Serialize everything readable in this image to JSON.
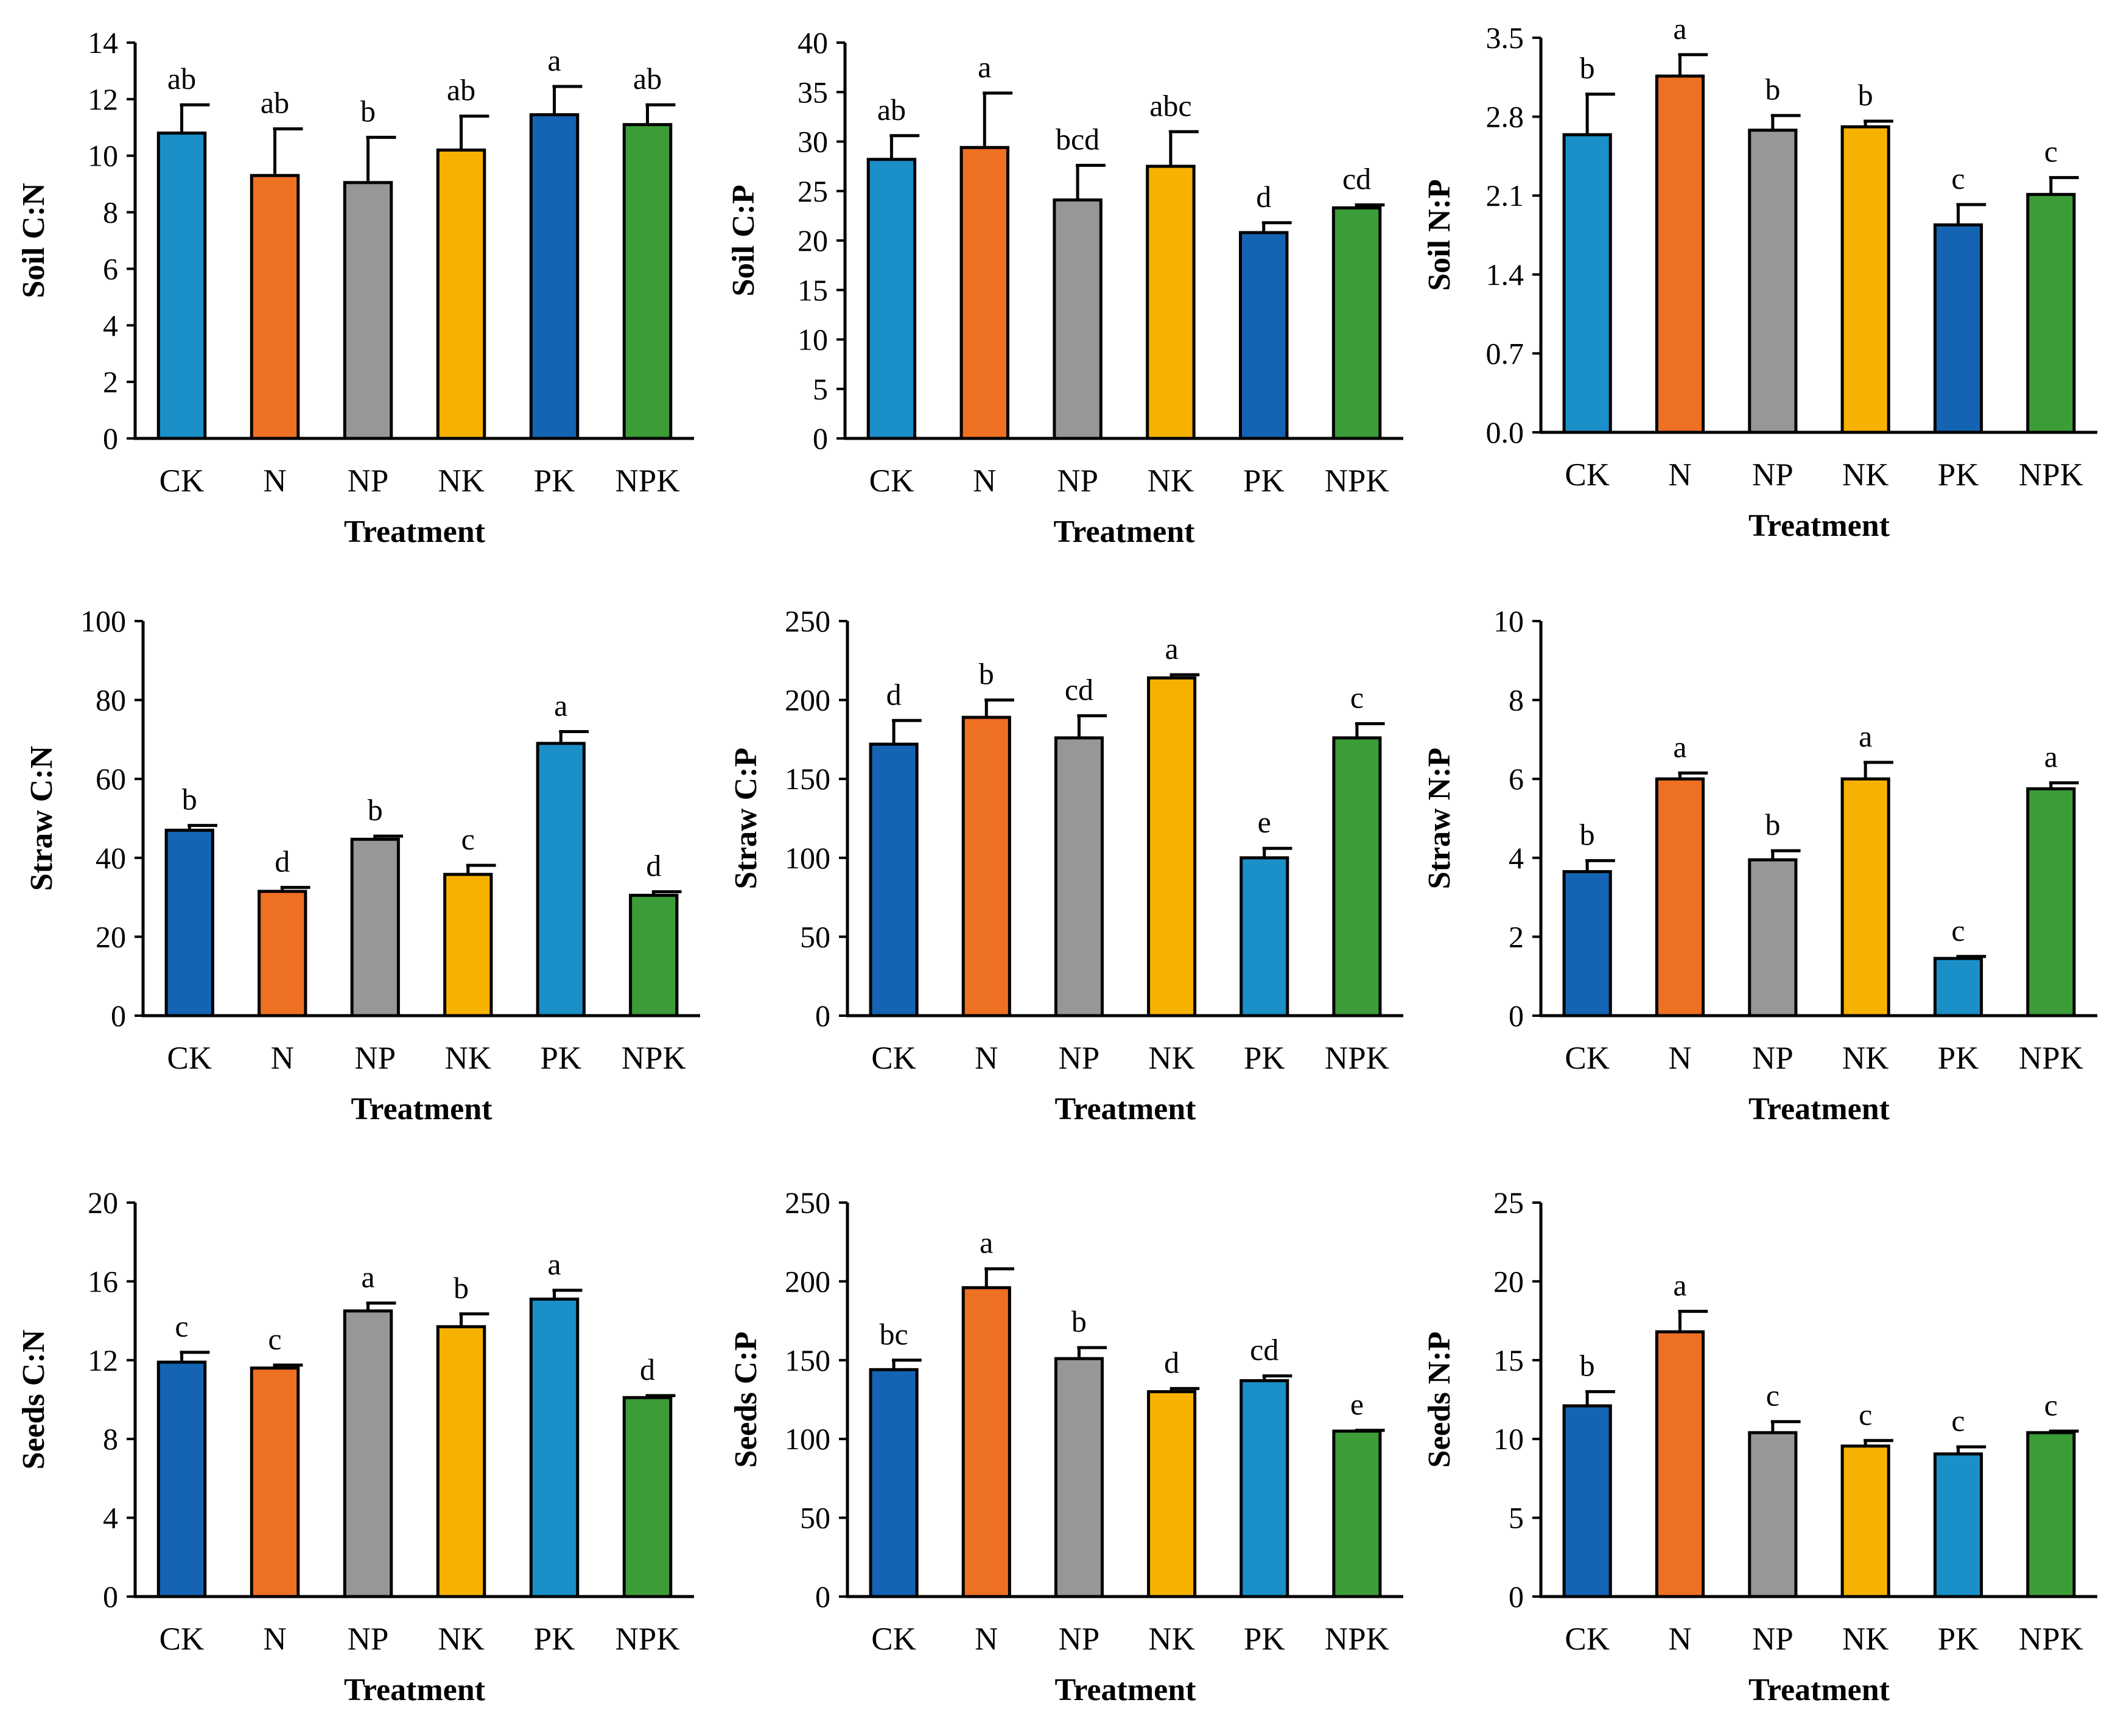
{
  "colors": {
    "light_blue": "#1a8fc8",
    "orange": "#ee7022",
    "gray": "#979797",
    "yellow": "#f7b100",
    "dark_blue": "#1464b3",
    "green": "#3c9c37"
  },
  "chart_data": [
    {
      "type": "bar",
      "ylabel": "Soil C:N",
      "xlabel": "Treatment",
      "categories": [
        "CK",
        "N",
        "NP",
        "NK",
        "PK",
        "NPK"
      ],
      "values": [
        10.8,
        9.3,
        9.05,
        10.2,
        11.45,
        11.1
      ],
      "errors": [
        1.0,
        1.65,
        1.6,
        1.2,
        1.0,
        0.7
      ],
      "letters": [
        "ab",
        "ab",
        "b",
        "ab",
        "a",
        "ab"
      ],
      "colors": [
        "light_blue",
        "orange",
        "gray",
        "yellow",
        "dark_blue",
        "green"
      ],
      "ylim": [
        0,
        14
      ],
      "yticks": [
        0,
        2,
        4,
        6,
        8,
        10,
        12,
        14
      ],
      "ytick_labels": [
        "0",
        "2",
        "4",
        "6",
        "8",
        "10",
        "12",
        "14"
      ]
    },
    {
      "type": "bar",
      "ylabel": "Soil C:P",
      "xlabel": "Treatment",
      "categories": [
        "CK",
        "N",
        "NP",
        "NK",
        "PK",
        "NPK"
      ],
      "values": [
        28.2,
        29.4,
        24.1,
        27.5,
        20.8,
        23.3
      ],
      "errors": [
        2.4,
        5.5,
        3.5,
        3.5,
        1.0,
        0.3
      ],
      "letters": [
        "ab",
        "a",
        "bcd",
        "abc",
        "d",
        "cd"
      ],
      "colors": [
        "light_blue",
        "orange",
        "gray",
        "yellow",
        "dark_blue",
        "green"
      ],
      "ylim": [
        0,
        40
      ],
      "yticks": [
        0,
        5,
        10,
        15,
        20,
        25,
        30,
        35,
        40
      ],
      "ytick_labels": [
        "0",
        "5",
        "10",
        "15",
        "20",
        "25",
        "30",
        "35",
        "40"
      ]
    },
    {
      "type": "bar",
      "ylabel": "Soil N:P",
      "xlabel": "Treatment",
      "categories": [
        "CK",
        "N",
        "NP",
        "NK",
        "PK",
        "NPK"
      ],
      "values": [
        2.64,
        3.16,
        2.68,
        2.71,
        1.84,
        2.11
      ],
      "errors": [
        0.36,
        0.19,
        0.13,
        0.05,
        0.18,
        0.15
      ],
      "letters": [
        "b",
        "a",
        "b",
        "b",
        "c",
        "c"
      ],
      "colors": [
        "light_blue",
        "orange",
        "gray",
        "yellow",
        "dark_blue",
        "green"
      ],
      "ylim": [
        0,
        3.5
      ],
      "yticks": [
        0,
        0.7,
        1.4,
        2.1,
        2.8,
        3.5
      ],
      "ytick_labels": [
        "0.0",
        "0.7",
        "1.4",
        "2.1",
        "2.8",
        "3.5"
      ]
    },
    {
      "type": "bar",
      "ylabel": "Straw C:N",
      "xlabel": "Treatment",
      "categories": [
        "CK",
        "N",
        "NP",
        "NK",
        "PK",
        "NPK"
      ],
      "values": [
        47.0,
        31.5,
        44.7,
        35.8,
        69.0,
        30.5
      ],
      "errors": [
        1.2,
        1.0,
        0.8,
        2.3,
        3.0,
        0.9
      ],
      "letters": [
        "b",
        "d",
        "b",
        "c",
        "a",
        "d"
      ],
      "colors": [
        "dark_blue",
        "orange",
        "gray",
        "yellow",
        "light_blue",
        "green"
      ],
      "ylim": [
        0,
        100
      ],
      "yticks": [
        0,
        20,
        40,
        60,
        80,
        100
      ],
      "ytick_labels": [
        "0",
        "20",
        "40",
        "60",
        "80",
        "100"
      ]
    },
    {
      "type": "bar",
      "ylabel": "Straw C:P",
      "xlabel": "Treatment",
      "categories": [
        "CK",
        "N",
        "NP",
        "NK",
        "PK",
        "NPK"
      ],
      "values": [
        172,
        189,
        176,
        214,
        100,
        176
      ],
      "errors": [
        15,
        11,
        14,
        2,
        6,
        9
      ],
      "letters": [
        "d",
        "b",
        "cd",
        "a",
        "e",
        "c"
      ],
      "colors": [
        "dark_blue",
        "orange",
        "gray",
        "yellow",
        "light_blue",
        "green"
      ],
      "ylim": [
        0,
        250
      ],
      "yticks": [
        0,
        50,
        100,
        150,
        200,
        250
      ],
      "ytick_labels": [
        "0",
        "50",
        "100",
        "150",
        "200",
        "250"
      ]
    },
    {
      "type": "bar",
      "ylabel": "Straw N:P",
      "xlabel": "Treatment",
      "categories": [
        "CK",
        "N",
        "NP",
        "NK",
        "PK",
        "NPK"
      ],
      "values": [
        3.65,
        6.0,
        3.95,
        6.0,
        1.45,
        5.75
      ],
      "errors": [
        0.28,
        0.15,
        0.23,
        0.42,
        0.05,
        0.15
      ],
      "letters": [
        "b",
        "a",
        "b",
        "a",
        "c",
        "a"
      ],
      "colors": [
        "dark_blue",
        "orange",
        "gray",
        "yellow",
        "light_blue",
        "green"
      ],
      "ylim": [
        0,
        10
      ],
      "yticks": [
        0,
        2,
        4,
        6,
        8,
        10
      ],
      "ytick_labels": [
        "0",
        "2",
        "4",
        "6",
        "8",
        "10"
      ]
    },
    {
      "type": "bar",
      "ylabel": "Seeds C:N",
      "xlabel": "Treatment",
      "categories": [
        "CK",
        "N",
        "NP",
        "NK",
        "PK",
        "NPK"
      ],
      "values": [
        11.9,
        11.6,
        14.5,
        13.7,
        15.1,
        10.1
      ],
      "errors": [
        0.5,
        0.15,
        0.4,
        0.65,
        0.45,
        0.1
      ],
      "letters": [
        "c",
        "c",
        "a",
        "b",
        "a",
        "d"
      ],
      "colors": [
        "dark_blue",
        "orange",
        "gray",
        "yellow",
        "light_blue",
        "green"
      ],
      "ylim": [
        0,
        20
      ],
      "yticks": [
        0,
        4,
        8,
        12,
        16,
        20
      ],
      "ytick_labels": [
        "0",
        "4",
        "8",
        "12",
        "16",
        "20"
      ]
    },
    {
      "type": "bar",
      "ylabel": "Seeds C:P",
      "xlabel": "Treatment",
      "categories": [
        "CK",
        "N",
        "NP",
        "NK",
        "PK",
        "NPK"
      ],
      "values": [
        144,
        196,
        151,
        130,
        137,
        105
      ],
      "errors": [
        6,
        12,
        7,
        2,
        3,
        0.5
      ],
      "letters": [
        "bc",
        "a",
        "b",
        "d",
        "cd",
        "e"
      ],
      "colors": [
        "dark_blue",
        "orange",
        "gray",
        "yellow",
        "light_blue",
        "green"
      ],
      "ylim": [
        0,
        250
      ],
      "yticks": [
        0,
        50,
        100,
        150,
        200,
        250
      ],
      "ytick_labels": [
        "0",
        "50",
        "100",
        "150",
        "200",
        "250"
      ]
    },
    {
      "type": "bar",
      "ylabel": "Seeds N:P",
      "xlabel": "Treatment",
      "categories": [
        "CK",
        "N",
        "NP",
        "NK",
        "PK",
        "NPK"
      ],
      "values": [
        12.1,
        16.8,
        10.4,
        9.55,
        9.05,
        10.4
      ],
      "errors": [
        0.9,
        1.3,
        0.7,
        0.35,
        0.45,
        0.1
      ],
      "letters": [
        "b",
        "a",
        "c",
        "c",
        "c",
        "c"
      ],
      "colors": [
        "dark_blue",
        "orange",
        "gray",
        "yellow",
        "light_blue",
        "green"
      ],
      "ylim": [
        0,
        25
      ],
      "yticks": [
        0,
        5,
        10,
        15,
        20,
        25
      ],
      "ytick_labels": [
        "0",
        "5",
        "10",
        "15",
        "20",
        "25"
      ]
    }
  ]
}
